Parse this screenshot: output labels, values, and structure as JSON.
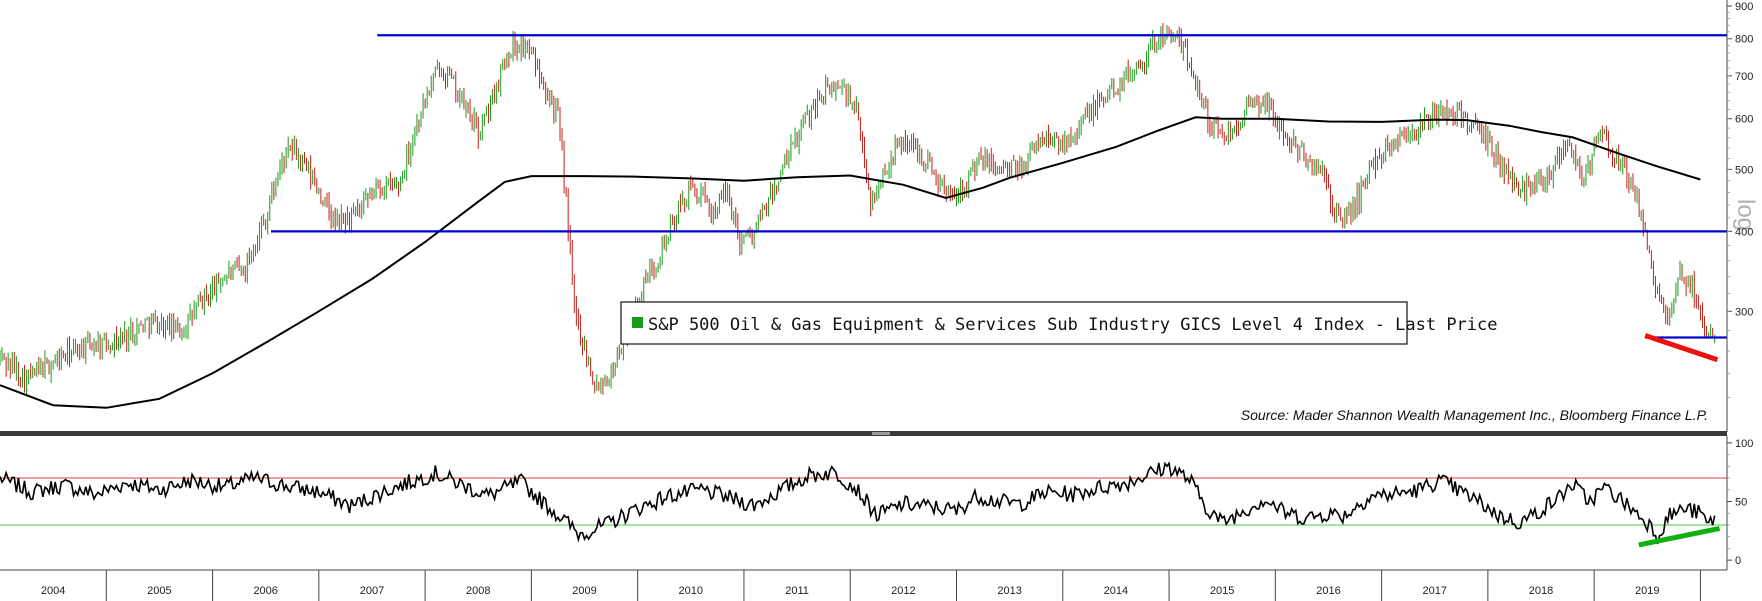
{
  "chart_data": [
    {
      "type": "candlestick",
      "title": "S&P 500 Oil & Gas Equipment & Services Sub Industry GICS Level 4 Index - Last Price",
      "legend": {
        "label": "S&P 500 Oil & Gas Equipment & Services Sub Industry GICS Level 4 Index - Last Price",
        "swatch_color": "#1a9a1a",
        "placement": "center"
      },
      "source": "Source: Mader Shannon Wealth Management Inc., Bloomberg Finance L.P.",
      "side_label": "log",
      "y_scale": "log",
      "ylim": [
        200,
        900
      ],
      "y_ticks": [
        "300",
        "400",
        "500",
        "600",
        "700",
        "800",
        "900"
      ],
      "x_ticks": [
        "2004",
        "2005",
        "2006",
        "2007",
        "2008",
        "2009",
        "2010",
        "2011",
        "2012",
        "2013",
        "2014",
        "2015",
        "2016",
        "2017",
        "2018",
        "2019"
      ],
      "xlim": [
        2003.5,
        2019.75
      ],
      "up_color": "#1a9a1a",
      "down_color": "#c0201a",
      "price_path": [
        [
          2003.5,
          255
        ],
        [
          2003.75,
          235
        ],
        [
          2004.0,
          250
        ],
        [
          2004.3,
          265
        ],
        [
          2004.6,
          270
        ],
        [
          2004.9,
          290
        ],
        [
          2005.2,
          280
        ],
        [
          2005.6,
          340
        ],
        [
          2005.8,
          350
        ],
        [
          2006.0,
          420
        ],
        [
          2006.15,
          510
        ],
        [
          2006.25,
          540
        ],
        [
          2006.45,
          480
        ],
        [
          2006.65,
          410
        ],
        [
          2006.9,
          430
        ],
        [
          2007.05,
          470
        ],
        [
          2007.25,
          470
        ],
        [
          2007.45,
          610
        ],
        [
          2007.65,
          730
        ],
        [
          2007.8,
          660
        ],
        [
          2008.0,
          570
        ],
        [
          2008.1,
          620
        ],
        [
          2008.3,
          780
        ],
        [
          2008.45,
          780
        ],
        [
          2008.6,
          700
        ],
        [
          2008.75,
          600
        ],
        [
          2008.9,
          300
        ],
        [
          2009.1,
          230
        ],
        [
          2009.25,
          240
        ],
        [
          2009.4,
          280
        ],
        [
          2009.6,
          340
        ],
        [
          2009.8,
          400
        ],
        [
          2010.0,
          470
        ],
        [
          2010.2,
          430
        ],
        [
          2010.35,
          460
        ],
        [
          2010.45,
          390
        ],
        [
          2010.6,
          400
        ],
        [
          2010.8,
          470
        ],
        [
          2011.0,
          560
        ],
        [
          2011.2,
          650
        ],
        [
          2011.4,
          680
        ],
        [
          2011.55,
          620
        ],
        [
          2011.7,
          440
        ],
        [
          2011.85,
          510
        ],
        [
          2012.0,
          560
        ],
        [
          2012.2,
          520
        ],
        [
          2012.4,
          460
        ],
        [
          2012.55,
          470
        ],
        [
          2012.75,
          520
        ],
        [
          2012.9,
          500
        ],
        [
          2013.1,
          500
        ],
        [
          2013.3,
          560
        ],
        [
          2013.5,
          550
        ],
        [
          2013.7,
          600
        ],
        [
          2013.9,
          650
        ],
        [
          2014.1,
          700
        ],
        [
          2014.3,
          760
        ],
        [
          2014.45,
          820
        ],
        [
          2014.6,
          790
        ],
        [
          2014.75,
          690
        ],
        [
          2014.9,
          580
        ],
        [
          2015.05,
          570
        ],
        [
          2015.25,
          620
        ],
        [
          2015.4,
          640
        ],
        [
          2015.6,
          560
        ],
        [
          2015.8,
          520
        ],
        [
          2015.95,
          490
        ],
        [
          2016.1,
          410
        ],
        [
          2016.25,
          440
        ],
        [
          2016.45,
          520
        ],
        [
          2016.65,
          560
        ],
        [
          2016.85,
          580
        ],
        [
          2017.05,
          615
        ],
        [
          2017.25,
          610
        ],
        [
          2017.45,
          560
        ],
        [
          2017.6,
          520
        ],
        [
          2017.75,
          470
        ],
        [
          2017.9,
          470
        ],
        [
          2018.1,
          500
        ],
        [
          2018.25,
          560
        ],
        [
          2018.4,
          480
        ],
        [
          2018.55,
          570
        ],
        [
          2018.7,
          520
        ],
        [
          2018.85,
          480
        ],
        [
          2018.98,
          390
        ],
        [
          2019.08,
          330
        ],
        [
          2019.2,
          280
        ],
        [
          2019.3,
          340
        ],
        [
          2019.42,
          330
        ],
        [
          2019.52,
          290
        ],
        [
          2019.58,
          272
        ],
        [
          2019.65,
          288
        ]
      ],
      "moving_average": {
        "name": "200-week moving average",
        "color": "#000000",
        "points": [
          [
            2003.5,
            230
          ],
          [
            2004.0,
            214
          ],
          [
            2004.5,
            212
          ],
          [
            2005.0,
            219
          ],
          [
            2005.5,
            240
          ],
          [
            2006.0,
            268
          ],
          [
            2006.5,
            300
          ],
          [
            2007.0,
            337
          ],
          [
            2007.5,
            385
          ],
          [
            2008.0,
            445
          ],
          [
            2008.25,
            478
          ],
          [
            2008.5,
            488
          ],
          [
            2009.0,
            488
          ],
          [
            2009.5,
            487
          ],
          [
            2010.0,
            484
          ],
          [
            2010.5,
            480
          ],
          [
            2011.0,
            486
          ],
          [
            2011.5,
            489
          ],
          [
            2012.0,
            473
          ],
          [
            2012.4,
            451
          ],
          [
            2012.75,
            468
          ],
          [
            2013.0,
            485
          ],
          [
            2013.5,
            512
          ],
          [
            2014.0,
            542
          ],
          [
            2014.4,
            575
          ],
          [
            2014.75,
            603
          ],
          [
            2015.0,
            600
          ],
          [
            2015.5,
            600
          ],
          [
            2016.0,
            594
          ],
          [
            2016.5,
            593
          ],
          [
            2017.0,
            598
          ],
          [
            2017.3,
            597
          ],
          [
            2017.7,
            585
          ],
          [
            2018.0,
            572
          ],
          [
            2018.3,
            561
          ],
          [
            2018.75,
            528
          ],
          [
            2019.1,
            505
          ],
          [
            2019.5,
            482
          ]
        ]
      },
      "horizontal_lines": [
        {
          "name": "resistance",
          "value": 810,
          "from": 2007.05,
          "to": 2019.75,
          "color": "#0000d0"
        },
        {
          "name": "support",
          "value": 400,
          "from": 2006.05,
          "to": 2019.75,
          "color": "#0000d0"
        },
        {
          "name": "recent-low",
          "value": 273,
          "from": 2018.98,
          "to": 2019.75,
          "color": "#0000d0"
        }
      ],
      "trendline": {
        "name": "price-down-trend",
        "from": [
          2018.98,
          275
        ],
        "to": [
          2019.66,
          252
        ],
        "color": "#ee1010"
      }
    },
    {
      "type": "line",
      "name": "RSI",
      "ylim": [
        -5,
        105
      ],
      "y_ticks": [
        "0",
        "50",
        "100"
      ],
      "color": "#000000",
      "overbought": {
        "value": 70,
        "color": "#d04040"
      },
      "oversold": {
        "value": 30,
        "color": "#40d040"
      },
      "points": [
        [
          2003.5,
          70
        ],
        [
          2003.8,
          58
        ],
        [
          2004.1,
          64
        ],
        [
          2004.4,
          56
        ],
        [
          2004.7,
          66
        ],
        [
          2005.0,
          60
        ],
        [
          2005.3,
          68
        ],
        [
          2005.6,
          62
        ],
        [
          2005.9,
          70
        ],
        [
          2006.2,
          63
        ],
        [
          2006.5,
          58
        ],
        [
          2006.8,
          46
        ],
        [
          2007.1,
          58
        ],
        [
          2007.4,
          68
        ],
        [
          2007.6,
          74
        ],
        [
          2007.9,
          62
        ],
        [
          2008.1,
          55
        ],
        [
          2008.4,
          67
        ],
        [
          2008.6,
          50
        ],
        [
          2008.8,
          35
        ],
        [
          2008.95,
          22
        ],
        [
          2009.2,
          30
        ],
        [
          2009.5,
          44
        ],
        [
          2009.8,
          55
        ],
        [
          2010.1,
          60
        ],
        [
          2010.4,
          52
        ],
        [
          2010.6,
          47
        ],
        [
          2010.9,
          62
        ],
        [
          2011.1,
          72
        ],
        [
          2011.35,
          75
        ],
        [
          2011.55,
          62
        ],
        [
          2011.75,
          38
        ],
        [
          2012.0,
          48
        ],
        [
          2012.3,
          45
        ],
        [
          2012.5,
          42
        ],
        [
          2012.7,
          55
        ],
        [
          2012.9,
          50
        ],
        [
          2013.1,
          48
        ],
        [
          2013.35,
          58
        ],
        [
          2013.6,
          56
        ],
        [
          2013.85,
          62
        ],
        [
          2014.1,
          66
        ],
        [
          2014.35,
          75
        ],
        [
          2014.5,
          80
        ],
        [
          2014.7,
          68
        ],
        [
          2014.85,
          45
        ],
        [
          2015.0,
          32
        ],
        [
          2015.2,
          42
        ],
        [
          2015.4,
          52
        ],
        [
          2015.6,
          40
        ],
        [
          2015.8,
          36
        ],
        [
          2016.0,
          40
        ],
        [
          2016.15,
          38
        ],
        [
          2016.4,
          55
        ],
        [
          2016.6,
          56
        ],
        [
          2016.85,
          60
        ],
        [
          2017.05,
          68
        ],
        [
          2017.25,
          58
        ],
        [
          2017.45,
          48
        ],
        [
          2017.6,
          38
        ],
        [
          2017.8,
          32
        ],
        [
          2017.95,
          40
        ],
        [
          2018.15,
          52
        ],
        [
          2018.3,
          65
        ],
        [
          2018.45,
          50
        ],
        [
          2018.6,
          62
        ],
        [
          2018.8,
          48
        ],
        [
          2018.95,
          36
        ],
        [
          2019.05,
          28
        ],
        [
          2019.1,
          20
        ],
        [
          2019.2,
          38
        ],
        [
          2019.35,
          44
        ],
        [
          2019.5,
          40
        ],
        [
          2019.58,
          30
        ],
        [
          2019.65,
          38
        ]
      ],
      "trendline": {
        "name": "rsi-up-trend",
        "from": [
          2018.92,
          13
        ],
        "to": [
          2019.68,
          27
        ],
        "color": "#10b010"
      }
    }
  ]
}
